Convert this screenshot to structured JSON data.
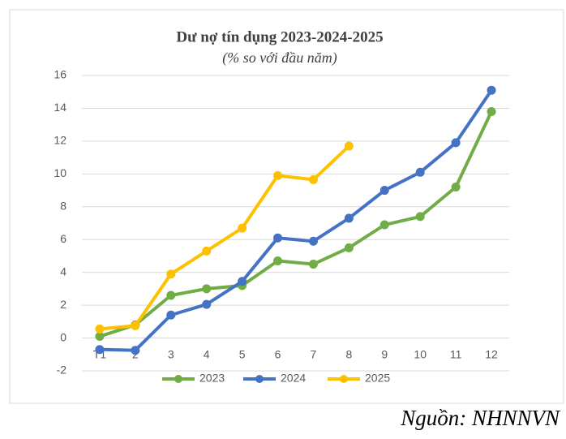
{
  "chart_data": {
    "type": "line",
    "title": "Dư nợ tín dụng 2023-2024-2025",
    "subtitle": "(% so với đầu năm)",
    "source": "Nguồn: NHNNVN",
    "categories": [
      "T1",
      "2",
      "3",
      "4",
      "5",
      "6",
      "7",
      "8",
      "9",
      "10",
      "11",
      "12"
    ],
    "series": [
      {
        "name": "2023",
        "color": "#70ad47",
        "values": [
          0.1,
          0.8,
          2.6,
          3.0,
          3.2,
          4.7,
          4.5,
          5.5,
          6.9,
          7.4,
          9.2,
          13.8
        ]
      },
      {
        "name": "2024",
        "color": "#4472c4",
        "values": [
          -0.7,
          -0.75,
          1.4,
          2.05,
          3.45,
          6.1,
          5.9,
          7.3,
          9.0,
          10.1,
          11.9,
          15.1
        ]
      },
      {
        "name": "2025",
        "color": "#ffc000",
        "values": [
          0.55,
          0.75,
          3.9,
          5.3,
          6.7,
          9.9,
          9.65,
          11.7,
          null,
          null,
          null,
          null
        ]
      }
    ],
    "ylim": [
      -2,
      16
    ],
    "yticks": [
      -2,
      0,
      2,
      4,
      6,
      8,
      10,
      12,
      14,
      16
    ],
    "grid": true,
    "legend": "bottom"
  }
}
